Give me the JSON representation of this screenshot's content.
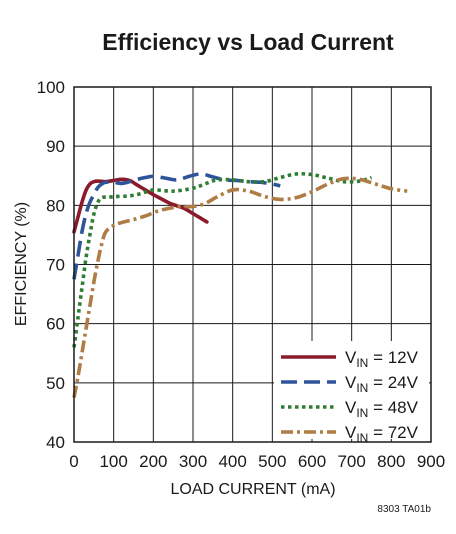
{
  "chart_data": {
    "type": "line",
    "title": "Efficiency vs Load Current",
    "xlabel": "LOAD CURRENT (mA)",
    "ylabel": "EFFICIENCY (%)",
    "xlim": [
      0,
      900
    ],
    "ylim": [
      40,
      100
    ],
    "xticks": [
      0,
      100,
      200,
      300,
      400,
      500,
      600,
      700,
      800,
      900
    ],
    "yticks": [
      40,
      50,
      60,
      70,
      80,
      90,
      100
    ],
    "grid": true,
    "legend_position": "bottom-right",
    "footnote": "8303 TA01b",
    "series": [
      {
        "legend_main": "V",
        "legend_sub": "IN",
        "legend_tail": " = 12V",
        "color": "#8b1a2b",
        "style": "solid",
        "points": [
          [
            0,
            75.5
          ],
          [
            10,
            78
          ],
          [
            20,
            80.5
          ],
          [
            30,
            82.5
          ],
          [
            40,
            83.6
          ],
          [
            50,
            84
          ],
          [
            60,
            84.1
          ],
          [
            80,
            84
          ],
          [
            100,
            84.2
          ],
          [
            120,
            84.4
          ],
          [
            140,
            84.2
          ],
          [
            160,
            83.4
          ],
          [
            180,
            82.6
          ],
          [
            200,
            81.8
          ],
          [
            220,
            81.1
          ],
          [
            240,
            80.4
          ],
          [
            260,
            79.9
          ],
          [
            280,
            79.4
          ],
          [
            300,
            78.6
          ],
          [
            320,
            77.8
          ],
          [
            335,
            77.2
          ]
        ]
      },
      {
        "legend_main": "V",
        "legend_sub": "IN",
        "legend_tail": " = 24V",
        "color": "#2e5599",
        "style": "dashed",
        "points": [
          [
            0,
            67.5
          ],
          [
            10,
            71.5
          ],
          [
            20,
            75.5
          ],
          [
            30,
            78.5
          ],
          [
            40,
            80.5
          ],
          [
            50,
            81.8
          ],
          [
            60,
            83
          ],
          [
            70,
            83.6
          ],
          [
            80,
            83.9
          ],
          [
            100,
            83.9
          ],
          [
            120,
            83.7
          ],
          [
            140,
            84
          ],
          [
            160,
            84.4
          ],
          [
            180,
            84.7
          ],
          [
            200,
            84.9
          ],
          [
            230,
            84.6
          ],
          [
            260,
            84.3
          ],
          [
            290,
            84.9
          ],
          [
            320,
            85.3
          ],
          [
            350,
            84.8
          ],
          [
            380,
            84.3
          ],
          [
            410,
            84.2
          ],
          [
            440,
            84
          ],
          [
            470,
            83.9
          ],
          [
            500,
            83.6
          ],
          [
            520,
            83.3
          ]
        ]
      },
      {
        "legend_main": "V",
        "legend_sub": "IN",
        "legend_tail": " = 48V",
        "color": "#2e7d32",
        "style": "dotted",
        "points": [
          [
            0,
            56
          ],
          [
            10,
            61
          ],
          [
            20,
            66
          ],
          [
            30,
            71
          ],
          [
            40,
            75
          ],
          [
            50,
            78.5
          ],
          [
            60,
            80.5
          ],
          [
            70,
            81.3
          ],
          [
            90,
            81.4
          ],
          [
            110,
            81.5
          ],
          [
            140,
            81.6
          ],
          [
            170,
            82
          ],
          [
            200,
            82.6
          ],
          [
            250,
            82.4
          ],
          [
            300,
            82.9
          ],
          [
            330,
            83.6
          ],
          [
            360,
            84.3
          ],
          [
            400,
            84.3
          ],
          [
            440,
            84
          ],
          [
            480,
            84
          ],
          [
            520,
            84.7
          ],
          [
            560,
            85.3
          ],
          [
            600,
            85.2
          ],
          [
            640,
            84.6
          ],
          [
            680,
            84
          ],
          [
            720,
            84.1
          ],
          [
            750,
            84.7
          ]
        ]
      },
      {
        "legend_main": "V",
        "legend_sub": "IN",
        "legend_tail": " = 72V",
        "color": "#b07c45",
        "style": "dashdot",
        "points": [
          [
            0,
            47.5
          ],
          [
            10,
            51
          ],
          [
            20,
            55
          ],
          [
            30,
            59
          ],
          [
            40,
            63
          ],
          [
            50,
            67
          ],
          [
            60,
            70.5
          ],
          [
            70,
            73.5
          ],
          [
            80,
            75.5
          ],
          [
            100,
            76.6
          ],
          [
            120,
            77.1
          ],
          [
            150,
            77.6
          ],
          [
            180,
            78.2
          ],
          [
            210,
            79
          ],
          [
            240,
            79.5
          ],
          [
            270,
            79.8
          ],
          [
            300,
            79.8
          ],
          [
            330,
            80.3
          ],
          [
            360,
            81.4
          ],
          [
            400,
            82.6
          ],
          [
            440,
            82.4
          ],
          [
            480,
            81.5
          ],
          [
            520,
            81
          ],
          [
            560,
            81.3
          ],
          [
            600,
            82.3
          ],
          [
            640,
            83.6
          ],
          [
            680,
            84.5
          ],
          [
            720,
            84.4
          ],
          [
            760,
            83.6
          ],
          [
            800,
            82.8
          ],
          [
            840,
            82.4
          ]
        ]
      }
    ]
  }
}
